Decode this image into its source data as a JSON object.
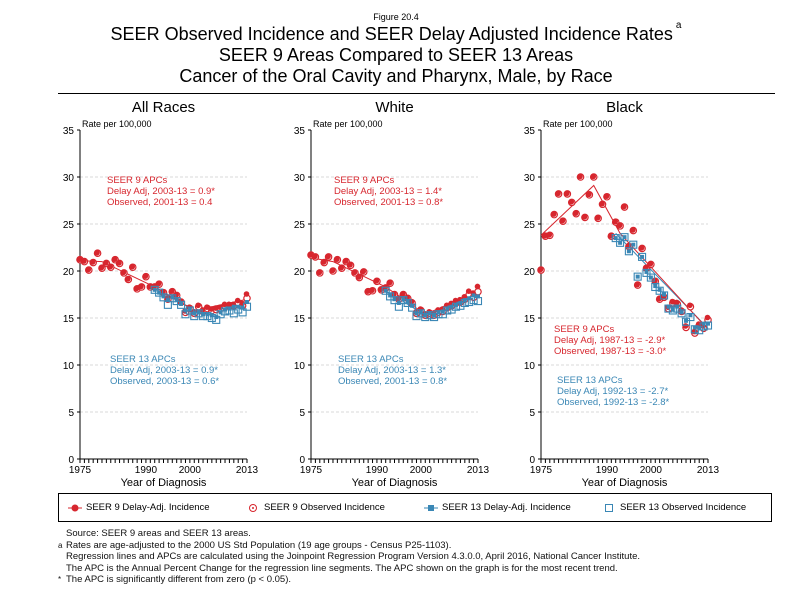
{
  "figure_label": "Figure 20.4",
  "title_lines": [
    "SEER Observed Incidence and SEER Delay Adjusted Incidence Rates",
    "SEER 9 Areas Compared to SEER 13 Areas",
    "Cancer of the Oral Cavity and Pharynx, Male, by Race"
  ],
  "title_superscript": "a",
  "colors": {
    "seer9": "#d7262e",
    "seer13": "#3a87b5",
    "grid": "#d9d9d9"
  },
  "legend": [
    {
      "label": "SEER 9 Delay-Adj. Incidence",
      "marker": "filled-circle",
      "color": "#d7262e"
    },
    {
      "label": "SEER 9 Observed Incidence",
      "marker": "open-circle",
      "color": "#d7262e"
    },
    {
      "label": "SEER 13 Delay-Adj. Incidence",
      "marker": "filled-square",
      "color": "#3a87b5"
    },
    {
      "label": "SEER 13 Observed Incidence",
      "marker": "open-square",
      "color": "#3a87b5"
    }
  ],
  "footnotes": [
    {
      "mark": "",
      "text": "Source: SEER 9 areas and SEER 13 areas."
    },
    {
      "mark": "a",
      "text": "Rates are age-adjusted to the 2000 US Std Population (19 age groups - Census P25-1103)."
    },
    {
      "mark": "",
      "text": "Regression lines and APCs are calculated using the Joinpoint Regression Program Version 4.3.0.0, April 2016, National Cancer Institute."
    },
    {
      "mark": "",
      "text": "The APC is the Annual Percent Change for the regression line segments. The APC shown on the graph is for the most recent trend."
    },
    {
      "mark": "*",
      "text": "The APC is significantly different from zero (p < 0.05)."
    }
  ],
  "chart_data": [
    {
      "type": "scatter",
      "title": "All Races",
      "ylabel": "Rate per 100,000",
      "xlabel": "Year of Diagnosis",
      "xlim": [
        1975,
        2013
      ],
      "ylim": [
        0,
        35
      ],
      "xticks": [
        1975,
        1990,
        2000,
        2013
      ],
      "yticks": [
        0,
        5,
        10,
        15,
        20,
        25,
        30,
        35
      ],
      "grid": "horizontal dashed",
      "apc9": [
        "SEER 9 APCs",
        "Delay Adj, 2003-13 = 0.9*",
        "Observed, 2001-13 = 0.4"
      ],
      "apc13": [
        "SEER 13 APCs",
        "Delay Adj, 2003-13 = 0.9*",
        "Observed, 2003-13 = 0.6*"
      ],
      "seer9_years_start": 1975,
      "seer9_delay": [
        21.2,
        21.0,
        20.1,
        20.9,
        21.9,
        20.3,
        20.8,
        20.4,
        21.2,
        20.8,
        19.8,
        19.1,
        20.4,
        18.1,
        18.3,
        19.4,
        18.3,
        18.3,
        18.6,
        17.7,
        17.0,
        17.8,
        17.4,
        16.7,
        15.7,
        16.1,
        15.6,
        16.3,
        15.8,
        16.1,
        15.9,
        16.0,
        16.1,
        16.4,
        16.4,
        16.4,
        16.8,
        16.5,
        17.5
      ],
      "seer9_obs": [
        21.2,
        21.0,
        20.1,
        20.9,
        21.9,
        20.3,
        20.8,
        20.4,
        21.2,
        20.8,
        19.8,
        19.1,
        20.4,
        18.1,
        18.3,
        19.4,
        18.3,
        18.3,
        18.6,
        17.7,
        17.0,
        17.8,
        17.4,
        16.7,
        15.6,
        16.0,
        15.5,
        16.2,
        15.7,
        16.0,
        15.8,
        15.9,
        16.0,
        16.2,
        16.3,
        16.3,
        16.6,
        16.3,
        17.1
      ],
      "seer9_trend": [
        [
          1975,
          21.1
        ],
        [
          1980,
          21.0
        ],
        [
          1992,
          18.3
        ],
        [
          2001,
          15.8
        ],
        [
          2013,
          17.0
        ]
      ],
      "seer13_years_start": 1992,
      "seer13_delay": [
        18.0,
        17.7,
        17.3,
        16.9,
        17.2,
        16.9,
        16.5,
        15.8,
        15.9,
        15.5,
        15.6,
        15.4,
        15.4,
        15.3,
        15.1,
        15.6,
        15.9,
        16.0,
        16.2,
        16.2,
        16.1,
        16.7
      ],
      "seer13_obs": [
        18.0,
        17.7,
        17.2,
        16.4,
        17.1,
        16.8,
        16.4,
        15.4,
        15.8,
        15.2,
        15.5,
        15.2,
        15.2,
        15.0,
        14.8,
        15.4,
        15.7,
        15.8,
        15.5,
        15.9,
        15.6,
        16.2
      ],
      "seer13_trend": [
        [
          1992,
          18.1
        ],
        [
          2003,
          15.4
        ],
        [
          2013,
          16.8
        ]
      ]
    },
    {
      "type": "scatter",
      "title": "White",
      "ylabel": "Rate per 100,000",
      "xlabel": "Year of Diagnosis",
      "xlim": [
        1975,
        2013
      ],
      "ylim": [
        0,
        35
      ],
      "xticks": [
        1975,
        1990,
        2000,
        2013
      ],
      "yticks": [
        0,
        5,
        10,
        15,
        20,
        25,
        30,
        35
      ],
      "grid": "horizontal dashed",
      "apc9": [
        "SEER 9 APCs",
        "Delay Adj, 2003-13 = 1.4*",
        "Observed, 2001-13 = 0.8*"
      ],
      "apc13": [
        "SEER 13 APCs",
        "Delay Adj, 2003-13 = 1.3*",
        "Observed, 2001-13 = 0.8*"
      ],
      "seer9_years_start": 1975,
      "seer9_delay": [
        21.7,
        21.5,
        19.8,
        20.9,
        21.5,
        20.0,
        21.2,
        20.3,
        21.0,
        20.6,
        19.8,
        19.3,
        19.9,
        17.8,
        17.9,
        18.9,
        18.0,
        18.2,
        18.7,
        17.5,
        17.0,
        17.5,
        17.1,
        16.7,
        15.6,
        15.9,
        15.4,
        15.6,
        15.4,
        15.8,
        15.9,
        16.3,
        16.5,
        16.8,
        16.9,
        17.2,
        17.8,
        17.6,
        18.3
      ],
      "seer9_obs": [
        21.7,
        21.5,
        19.8,
        20.9,
        21.5,
        20.0,
        21.2,
        20.3,
        21.0,
        20.6,
        19.8,
        19.3,
        19.9,
        17.8,
        17.9,
        18.9,
        18.0,
        18.2,
        18.7,
        17.5,
        17.0,
        17.5,
        17.1,
        16.6,
        15.5,
        15.8,
        15.3,
        15.5,
        15.3,
        15.6,
        15.7,
        16.1,
        16.3,
        16.6,
        16.7,
        17.0,
        17.5,
        17.2,
        17.8
      ],
      "seer9_trend": [
        [
          1975,
          21.4
        ],
        [
          1980,
          21.0
        ],
        [
          1992,
          18.3
        ],
        [
          2001,
          15.4
        ],
        [
          2013,
          17.8
        ]
      ],
      "seer13_years_start": 1992,
      "seer13_delay": [
        17.9,
        17.4,
        17.0,
        16.6,
        17.0,
        16.7,
        16.3,
        15.5,
        15.6,
        15.3,
        15.5,
        15.3,
        15.6,
        15.7,
        16.0,
        16.2,
        16.4,
        16.6,
        16.9,
        17.1,
        17.4,
        17.3
      ],
      "seer13_obs": [
        17.9,
        17.3,
        16.9,
        16.2,
        16.9,
        16.6,
        16.1,
        15.2,
        15.5,
        15.1,
        15.3,
        15.1,
        15.4,
        15.4,
        15.8,
        15.9,
        16.2,
        16.3,
        16.6,
        16.7,
        16.9,
        16.8
      ],
      "seer13_trend": [
        [
          1992,
          17.9
        ],
        [
          2001,
          15.3
        ],
        [
          2013,
          17.4
        ]
      ]
    },
    {
      "type": "scatter",
      "title": "Black",
      "ylabel": "Rate per 100,000",
      "xlabel": "Year of Diagnosis",
      "xlim": [
        1975,
        2013
      ],
      "ylim": [
        0,
        35
      ],
      "xticks": [
        1975,
        1990,
        2000,
        2013
      ],
      "yticks": [
        0,
        5,
        10,
        15,
        20,
        25,
        30,
        35
      ],
      "grid": "horizontal dashed",
      "apc9": [
        "SEER 9 APCs",
        "Delay Adj, 1987-13 = -2.9*",
        "Observed, 1987-13 = -3.0*"
      ],
      "apc13": [
        "SEER 13 APCs",
        "Delay Adj, 1992-13 = -2.7*",
        "Observed, 1992-13 = -2.8*"
      ],
      "seer9_years_start": 1975,
      "seer9_delay": [
        20.1,
        23.7,
        23.8,
        26.0,
        28.2,
        25.3,
        28.2,
        27.3,
        26.1,
        30.0,
        25.7,
        28.1,
        30.0,
        25.6,
        27.1,
        27.9,
        23.7,
        25.2,
        24.8,
        26.8,
        22.6,
        24.3,
        18.5,
        22.4,
        20.3,
        20.7,
        18.9,
        17.0,
        17.2,
        16.1,
        16.7,
        16.6,
        15.8,
        14.1,
        16.3,
        13.5,
        14.3,
        14.1,
        15.0
      ],
      "seer9_obs": [
        20.1,
        23.7,
        23.8,
        26.0,
        28.2,
        25.3,
        28.2,
        27.3,
        26.1,
        30.0,
        25.7,
        28.1,
        30.0,
        25.6,
        27.1,
        27.9,
        23.7,
        25.2,
        24.8,
        26.8,
        22.6,
        24.3,
        18.5,
        22.4,
        20.3,
        20.7,
        18.9,
        17.0,
        17.2,
        16.0,
        16.6,
        16.5,
        15.7,
        14.0,
        16.2,
        13.4,
        14.2,
        13.9,
        14.8
      ],
      "seer9_trend": [
        [
          1975,
          23.8
        ],
        [
          1987,
          29.1
        ],
        [
          1993,
          24.0
        ],
        [
          2013,
          13.8
        ]
      ],
      "seer13_years_start": 1992,
      "seer13_delay": [
        23.5,
        23.0,
        23.6,
        22.1,
        22.8,
        19.4,
        21.5,
        19.9,
        19.3,
        18.4,
        18.0,
        17.5,
        16.2,
        15.9,
        16.2,
        15.6,
        14.7,
        15.3,
        14.0,
        13.9,
        14.4,
        14.4
      ],
      "seer13_obs": [
        23.5,
        23.0,
        23.6,
        22.1,
        22.8,
        19.4,
        21.5,
        19.8,
        19.3,
        18.3,
        17.9,
        17.4,
        16.0,
        15.8,
        16.0,
        15.5,
        14.6,
        15.1,
        13.8,
        13.7,
        14.1,
        14.2
      ],
      "seer13_trend": [
        [
          1992,
          24.0
        ],
        [
          2013,
          13.9
        ]
      ]
    }
  ]
}
